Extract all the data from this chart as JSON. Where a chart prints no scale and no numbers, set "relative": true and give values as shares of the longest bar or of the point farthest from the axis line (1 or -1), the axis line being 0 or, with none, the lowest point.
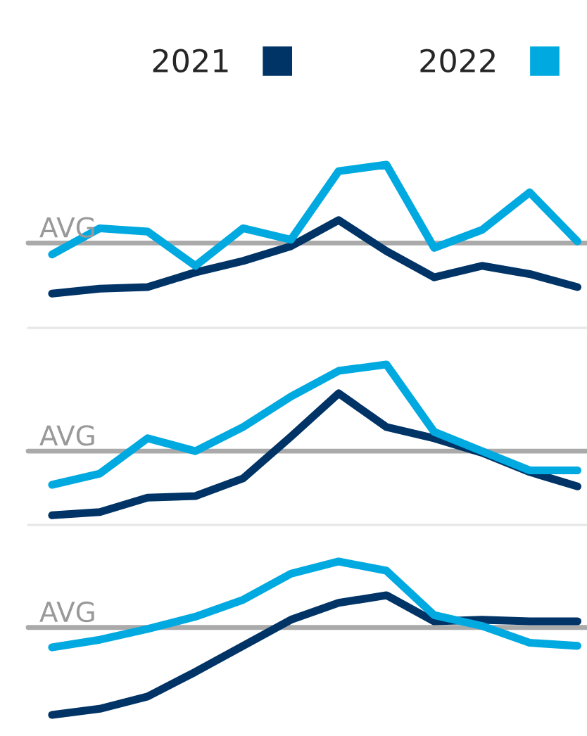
{
  "chart_data": [
    {
      "type": "line",
      "relative": true,
      "categories": [
        null,
        null,
        null,
        null,
        null,
        null,
        null,
        null,
        null,
        null,
        null,
        null
      ],
      "legend": "top",
      "marker": "none",
      "line_style": "solid",
      "series": [
        {
          "name": "2021",
          "color": "#003366",
          "values": [
            0.21,
            0.24,
            0.25,
            0.34,
            0.41,
            0.5,
            0.66,
            0.47,
            0.31,
            0.38,
            0.33,
            0.25
          ]
        },
        {
          "name": "2022",
          "color": "#00a9e0",
          "values": [
            0.45,
            0.61,
            0.59,
            0.38,
            0.61,
            0.54,
            0.96,
            1,
            0.49,
            0.6,
            0.83,
            0.53
          ]
        }
      ],
      "ref_lines": [
        {
          "axis": "y",
          "value": 0.52,
          "label": "AVG",
          "color": "#aaaaaa"
        }
      ]
    },
    {
      "type": "line",
      "relative": true,
      "categories": [
        null,
        null,
        null,
        null,
        null,
        null,
        null,
        null,
        null,
        null,
        null,
        null
      ],
      "marker": "none",
      "line_style": "solid",
      "series": [
        {
          "color": "#003366",
          "values": [
            0.06,
            0.08,
            0.17,
            0.18,
            0.29,
            0.55,
            0.82,
            0.61,
            0.54,
            0.45,
            0.33,
            0.24
          ]
        },
        {
          "color": "#00a9e0",
          "values": [
            0.25,
            0.32,
            0.54,
            0.46,
            0.61,
            0.8,
            0.96,
            1,
            0.58,
            0.46,
            0.34,
            0.34
          ]
        }
      ],
      "ref_lines": [
        {
          "axis": "y",
          "value": 0.46,
          "label": "AVG",
          "color": "#aaaaaa"
        }
      ]
    },
    {
      "type": "line",
      "relative": true,
      "categories": [
        null,
        null,
        null,
        null,
        null,
        null,
        null,
        null,
        null,
        null,
        null,
        null
      ],
      "marker": "none",
      "line_style": "solid",
      "series": [
        {
          "color": "#003366",
          "values": [
            0,
            0.04,
            0.12,
            0.28,
            0.45,
            0.62,
            0.73,
            0.78,
            0.61,
            0.62,
            0.61,
            0.61
          ]
        },
        {
          "color": "#00a9e0",
          "values": [
            0.44,
            0.49,
            0.56,
            0.64,
            0.75,
            0.92,
            1,
            0.94,
            0.65,
            0.58,
            0.47,
            0.45
          ]
        }
      ],
      "ref_lines": [
        {
          "axis": "y",
          "value": 0.57,
          "label": "AVG",
          "color": "#aaaaaa"
        }
      ]
    }
  ]
}
